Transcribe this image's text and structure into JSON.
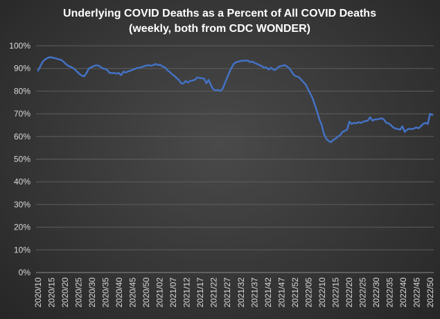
{
  "colors": {
    "line": "#4472C4",
    "grid": "#5e5e5e",
    "text": "#d9d9d9",
    "title": "#ffffff"
  },
  "chart_data": {
    "type": "line",
    "title": "Underlying COVID Deaths as a Percent of All COVID Deaths",
    "subtitle": "(weekly, both from CDC WONDER)",
    "xlabel": "",
    "ylabel": "",
    "ylim": [
      0,
      100
    ],
    "y_ticks": [
      "0%",
      "10%",
      "20%",
      "30%",
      "40%",
      "50%",
      "60%",
      "70%",
      "80%",
      "90%",
      "100%"
    ],
    "grid": true,
    "legend": "none",
    "x_tick_labels": [
      "2020/10",
      "2020/15",
      "2020/20",
      "2020/25",
      "2020/30",
      "2020/35",
      "2020/40",
      "2020/45",
      "2020/50",
      "2021/02",
      "2021/07",
      "2021/12",
      "2021/17",
      "2021/22",
      "2021/27",
      "2021/32",
      "2021/37",
      "2021/42",
      "2021/47",
      "2021/52",
      "2022/05",
      "2022/10",
      "2022/15",
      "2022/20",
      "2022/25",
      "2022/30",
      "2022/35",
      "2022/40",
      "2022/45",
      "2022/50"
    ],
    "series": [
      {
        "values": [
          89,
          91,
          93,
          94,
          94.5,
          95,
          94.8,
          94.6,
          94.3,
          94,
          93.8,
          93,
          92,
          91.2,
          90.8,
          90.3,
          89.5,
          88.5,
          87.5,
          86.8,
          86.5,
          88,
          90,
          90.5,
          91,
          91.3,
          91.3,
          90.8,
          90,
          89.8,
          89.3,
          88,
          88,
          88,
          87.7,
          88,
          87,
          88.6,
          88.2,
          88.7,
          89,
          89.4,
          89.8,
          90.2,
          90.3,
          90.6,
          91,
          91.3,
          91.4,
          91.2,
          91.5,
          92,
          91.5,
          91.6,
          90.8,
          90.5,
          89.3,
          88.5,
          87.5,
          86.8,
          85.8,
          85,
          83.5,
          83.3,
          84.5,
          83.8,
          84.5,
          84.7,
          85,
          86,
          85.8,
          85.7,
          85.5,
          83.5,
          85,
          82.5,
          80.8,
          80.3,
          80.5,
          80,
          81,
          83.5,
          86,
          88.5,
          90.5,
          92.2,
          92.8,
          93.1,
          93.3,
          93.4,
          93.5,
          93.4,
          92.8,
          93,
          92.4,
          92,
          91.5,
          91,
          90.3,
          90.5,
          89.5,
          90.3,
          89.5,
          89.4,
          90.5,
          91,
          91.2,
          91.5,
          90.8,
          90,
          88.5,
          87,
          86.5,
          86.2,
          85.2,
          84,
          83,
          81,
          79,
          77,
          74,
          71,
          67.5,
          65,
          61,
          59,
          58,
          57.5,
          58.5,
          59,
          60,
          60.5,
          62,
          62.5,
          63,
          66.5,
          65.5,
          66,
          65.8,
          66.3,
          66,
          66.5,
          66.8,
          67,
          68.5,
          67,
          67.5,
          67.5,
          67.8,
          68,
          67.5,
          66,
          65.8,
          65,
          64,
          63.5,
          63.3,
          63,
          64.5,
          62,
          63,
          63.4,
          63.2,
          63.5,
          64,
          63.6,
          64.5,
          65.5,
          66,
          65.5,
          70,
          69.5
        ]
      }
    ]
  }
}
